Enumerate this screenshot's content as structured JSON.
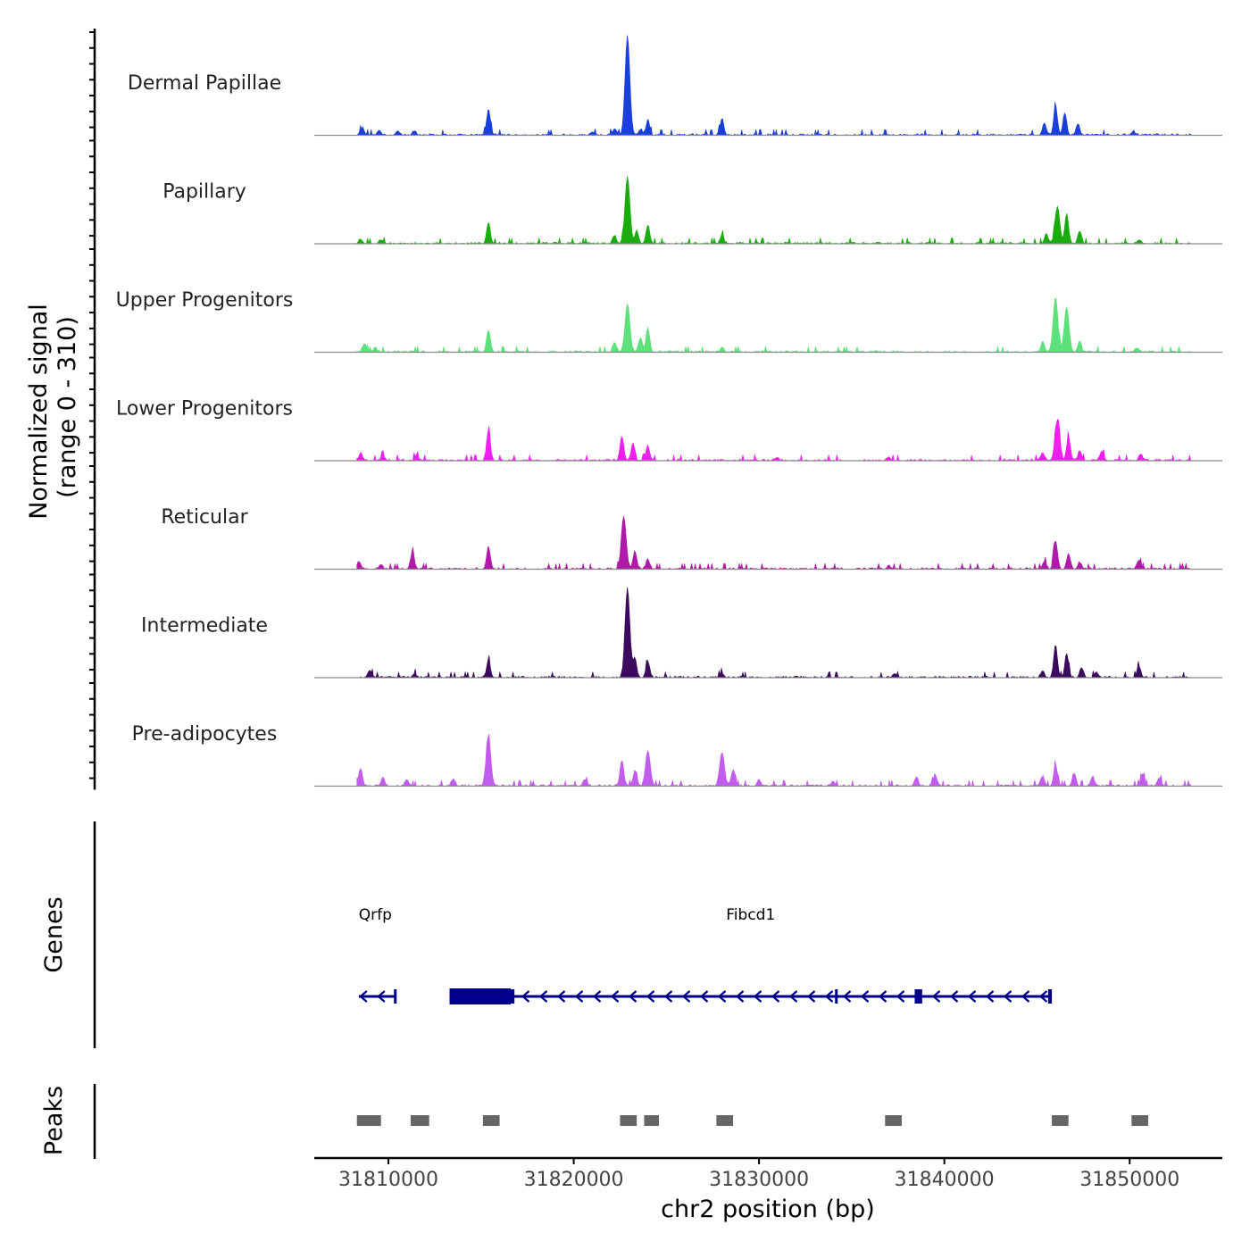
{
  "chart_data": {
    "type": "area",
    "title": "",
    "ylabel_line1": "Normalized signal",
    "ylabel_line2": "(range 0 - 310)",
    "xlabel": "chr2 position (bp)",
    "y_range": [
      0,
      310
    ],
    "xlim": [
      31806000,
      31855000
    ],
    "x_ticks": [
      31810000,
      31820000,
      31830000,
      31840000,
      31850000
    ],
    "x_tick_labels": [
      "31810000",
      "31820000",
      "31830000",
      "31840000",
      "31850000"
    ],
    "signal_extent": [
      31808300,
      31853300
    ],
    "tracks": [
      {
        "name": "Dermal Papillae",
        "color": "#1a3fdb",
        "peaks": [
          [
            31808600,
            22
          ],
          [
            31809500,
            16
          ],
          [
            31810500,
            14
          ],
          [
            31811400,
            12
          ],
          [
            31815400,
            82
          ],
          [
            31821000,
            10
          ],
          [
            31822200,
            18
          ],
          [
            31822900,
            310
          ],
          [
            31823600,
            18
          ],
          [
            31824000,
            45
          ],
          [
            31828000,
            52
          ],
          [
            31845400,
            38
          ],
          [
            31846000,
            90
          ],
          [
            31846500,
            70
          ],
          [
            31847200,
            35
          ],
          [
            31850200,
            12
          ]
        ]
      },
      {
        "name": "Papillary",
        "color": "#1aab0e",
        "peaks": [
          [
            31808500,
            14
          ],
          [
            31809600,
            12
          ],
          [
            31815400,
            65
          ],
          [
            31822200,
            25
          ],
          [
            31822900,
            210
          ],
          [
            31823400,
            40
          ],
          [
            31824000,
            58
          ],
          [
            31828000,
            25
          ],
          [
            31845500,
            30
          ],
          [
            31846100,
            115
          ],
          [
            31846600,
            95
          ],
          [
            31847300,
            40
          ],
          [
            31850500,
            12
          ]
        ]
      },
      {
        "name": "Upper Progenitors",
        "color": "#5ee07a",
        "peaks": [
          [
            31808700,
            25
          ],
          [
            31809300,
            12
          ],
          [
            31815400,
            70
          ],
          [
            31822200,
            30
          ],
          [
            31822900,
            150
          ],
          [
            31823600,
            45
          ],
          [
            31824000,
            75
          ],
          [
            31828000,
            15
          ],
          [
            31845300,
            30
          ],
          [
            31846000,
            170
          ],
          [
            31846600,
            140
          ],
          [
            31847300,
            35
          ],
          [
            31850400,
            12
          ]
        ]
      },
      {
        "name": "Lower Progenitors",
        "color": "#f21ef0",
        "peaks": [
          [
            31808500,
            22
          ],
          [
            31809700,
            14
          ],
          [
            31811500,
            15
          ],
          [
            31815400,
            95
          ],
          [
            31822600,
            75
          ],
          [
            31823200,
            55
          ],
          [
            31824000,
            45
          ],
          [
            31831000,
            10
          ],
          [
            31837000,
            12
          ],
          [
            31845300,
            25
          ],
          [
            31846100,
            125
          ],
          [
            31846700,
            75
          ],
          [
            31847300,
            30
          ],
          [
            31848500,
            30
          ],
          [
            31850600,
            20
          ]
        ]
      },
      {
        "name": "Reticular",
        "color": "#b01aa8",
        "peaks": [
          [
            31808400,
            22
          ],
          [
            31809600,
            14
          ],
          [
            31811300,
            52
          ],
          [
            31815400,
            70
          ],
          [
            31822700,
            165
          ],
          [
            31823300,
            55
          ],
          [
            31824000,
            30
          ],
          [
            31837000,
            10
          ],
          [
            31845400,
            25
          ],
          [
            31846000,
            90
          ],
          [
            31846700,
            48
          ],
          [
            31847300,
            20
          ],
          [
            31850500,
            28
          ]
        ]
      },
      {
        "name": "Intermediate",
        "color": "#3b0a5c",
        "peaks": [
          [
            31809000,
            22
          ],
          [
            31811400,
            12
          ],
          [
            31815400,
            55
          ],
          [
            31822900,
            280
          ],
          [
            31823300,
            60
          ],
          [
            31824000,
            50
          ],
          [
            31828000,
            14
          ],
          [
            31837300,
            12
          ],
          [
            31845300,
            20
          ],
          [
            31846000,
            100
          ],
          [
            31846600,
            75
          ],
          [
            31847400,
            30
          ],
          [
            31848200,
            18
          ],
          [
            31850500,
            35
          ]
        ]
      },
      {
        "name": "Pre-adipocytes",
        "color": "#c25cec",
        "peaks": [
          [
            31808500,
            55
          ],
          [
            31809700,
            25
          ],
          [
            31811000,
            20
          ],
          [
            31813500,
            22
          ],
          [
            31815400,
            150
          ],
          [
            31820600,
            20
          ],
          [
            31822600,
            80
          ],
          [
            31823300,
            45
          ],
          [
            31824000,
            110
          ],
          [
            31828000,
            105
          ],
          [
            31828600,
            50
          ],
          [
            31830000,
            20
          ],
          [
            31834000,
            15
          ],
          [
            31838500,
            28
          ],
          [
            31839500,
            35
          ],
          [
            31845300,
            30
          ],
          [
            31846000,
            65
          ],
          [
            31847000,
            40
          ],
          [
            31848000,
            30
          ],
          [
            31850700,
            35
          ],
          [
            31851600,
            25
          ]
        ]
      }
    ],
    "genes_title": "Genes",
    "genes": [
      {
        "name": "Qrfp",
        "start": 31808400,
        "end": 31810400,
        "strand": "-",
        "exons": [
          [
            31810300,
            31810400
          ]
        ]
      },
      {
        "name": "Fibcd1",
        "start": 31813300,
        "end": 31845800,
        "strand": "-",
        "exons": [
          [
            31813300,
            31816600
          ],
          [
            31816600,
            31816800
          ],
          [
            31834100,
            31834200
          ],
          [
            31838400,
            31838800
          ],
          [
            31845600,
            31845800
          ]
        ]
      }
    ],
    "peaks_title": "Peaks",
    "peak_regions": [
      [
        31808300,
        31809600
      ],
      [
        31811200,
        31812200
      ],
      [
        31815100,
        31816000
      ],
      [
        31822500,
        31823400
      ],
      [
        31823800,
        31824600
      ],
      [
        31827700,
        31828600
      ],
      [
        31836800,
        31837700
      ],
      [
        31845800,
        31846700
      ],
      [
        31850100,
        31851000
      ]
    ]
  }
}
